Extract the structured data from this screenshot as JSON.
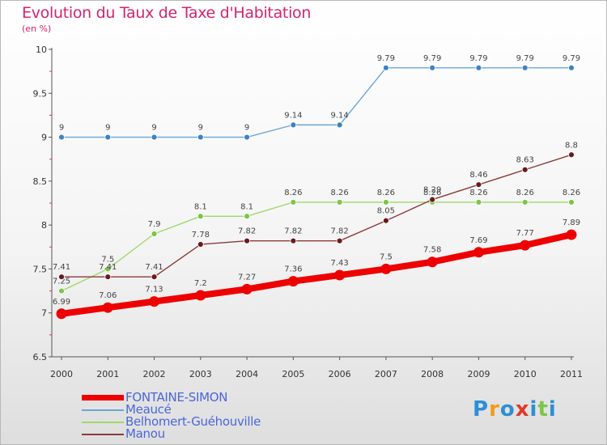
{
  "chart_data": {
    "type": "line",
    "title": "Evolution du Taux de Taxe d'Habitation",
    "subtitle": "(en %)",
    "x": [
      "2000",
      "2001",
      "2002",
      "2003",
      "2004",
      "2005",
      "2006",
      "2007",
      "2008",
      "2009",
      "2010",
      "2011"
    ],
    "ylim": [
      6.5,
      10
    ],
    "yticks": [
      "6.5",
      "7",
      "7.5",
      "8",
      "8.5",
      "9",
      "9.5",
      "10"
    ],
    "grid": false,
    "legend_position": "bottom-left",
    "series": [
      {
        "name": "Meaucé",
        "color": "#6aa6d8",
        "marker_color": "#3b83c4",
        "values": [
          9,
          9,
          9,
          9,
          9,
          9.14,
          9.14,
          9.79,
          9.79,
          9.79,
          9.79,
          9.79
        ],
        "labels": [
          "9",
          "9",
          "9",
          "9",
          "9",
          "9.14",
          "9.14",
          "9.79",
          "9.79",
          "9.79",
          "9.79",
          "9.79"
        ]
      },
      {
        "name": "Belhomert-Guéhouville",
        "color": "#9fd86b",
        "marker_color": "#7cc646",
        "values": [
          7.25,
          7.5,
          7.9,
          8.1,
          8.1,
          8.26,
          8.26,
          8.26,
          8.26,
          8.26,
          8.26,
          8.26
        ],
        "labels": [
          "7.25",
          "7.5",
          "7.9",
          "8.1",
          "8.1",
          "8.26",
          "8.26",
          "8.26",
          "8.26",
          "8.26",
          "8.26",
          "8.26"
        ]
      },
      {
        "name": "Manou",
        "color": "#8b3a3a",
        "marker_color": "#6b1a1a",
        "values": [
          7.41,
          7.41,
          7.41,
          7.78,
          7.82,
          7.82,
          7.82,
          8.05,
          8.29,
          8.46,
          8.63,
          8.8
        ],
        "labels": [
          "7.41",
          "7.41",
          "7.41",
          "7.78",
          "7.82",
          "7.82",
          "7.82",
          "8.05",
          "8.29",
          "8.46",
          "8.63",
          "8.8"
        ]
      },
      {
        "name": "FONTAINE-SIMON",
        "color": "#ee0000",
        "marker_color": "#ee0000",
        "values": [
          6.99,
          7.06,
          7.13,
          7.2,
          7.27,
          7.36,
          7.43,
          7.5,
          7.58,
          7.69,
          7.77,
          7.89
        ],
        "labels": [
          "6.99",
          "7.06",
          "7.13",
          "7.2",
          "7.27",
          "7.36",
          "7.43",
          "7.5",
          "7.58",
          "7.69",
          "7.77",
          "7.89"
        ]
      }
    ]
  },
  "legend": [
    {
      "label": "FONTAINE-SIMON",
      "color": "#ee0000"
    },
    {
      "label": "Meaucé",
      "color": "#6aa6d8"
    },
    {
      "label": "Belhomert-Guéhouville",
      "color": "#9fd86b"
    },
    {
      "label": "Manou",
      "color": "#8b3a3a"
    }
  ],
  "logo": {
    "text": "Proxiti",
    "letter_colors": [
      "#2d8fd6",
      "#f39a1a",
      "#2d8fd6",
      "#e23a2a",
      "#2d8fd6",
      "#7cc646",
      "#2d8fd6"
    ]
  }
}
